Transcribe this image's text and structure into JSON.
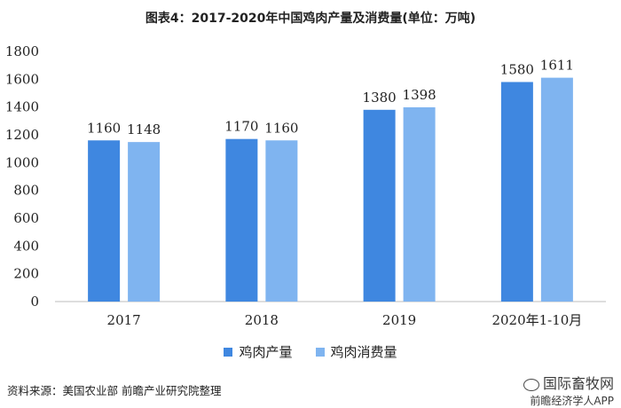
{
  "title": "图表4：2017-2020年中国鸡肉产量及消费量(单位：万吨)",
  "source": "资料来源：美国农业部 前瞻产业研究院整理",
  "brand": {
    "site": "国际畜牧网",
    "app": "前瞻经济学人APP"
  },
  "colors": {
    "production": "#3f87e0",
    "consumption": "#7fb4f0"
  },
  "chart_data": {
    "type": "bar",
    "categories": [
      "2017",
      "2018",
      "2019",
      "2020年1-10月"
    ],
    "series": [
      {
        "name": "鸡肉产量",
        "values": [
          1160,
          1170,
          1380,
          1580
        ]
      },
      {
        "name": "鸡肉消费量",
        "values": [
          1148,
          1160,
          1398,
          1611
        ]
      }
    ],
    "ylim": [
      0,
      1800
    ],
    "yticks": [
      "0",
      "200",
      "400",
      "600",
      "800",
      "1000",
      "1200",
      "1400",
      "1600",
      "1800"
    ],
    "data_labels": [
      [
        "1160",
        "1170",
        "1380",
        "1580"
      ],
      [
        "1148",
        "1160",
        "1398",
        "1611"
      ]
    ],
    "legend_position": "bottom",
    "grid": false
  }
}
